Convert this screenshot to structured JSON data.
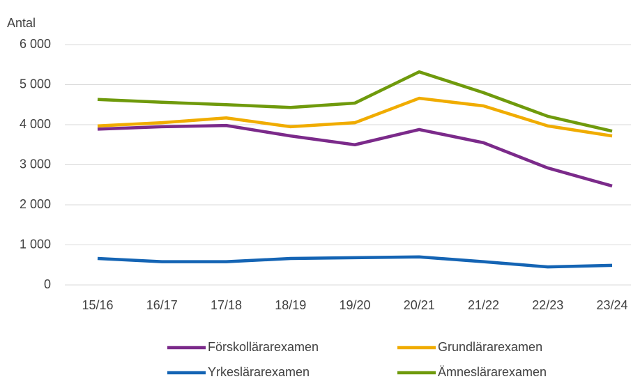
{
  "chart_data": {
    "type": "line",
    "ylabel": "Antal",
    "categories": [
      "15/16",
      "16/17",
      "17/18",
      "18/19",
      "19/20",
      "20/21",
      "21/22",
      "22/23",
      "23/24"
    ],
    "series": [
      {
        "name": "Förskollärarexamen",
        "color": "#7b2a8a",
        "values": [
          3890,
          3950,
          3980,
          3720,
          3500,
          3880,
          3550,
          2920,
          2470
        ]
      },
      {
        "name": "Grundlärarexamen",
        "color": "#f0ac00",
        "values": [
          3970,
          4050,
          4170,
          3950,
          4050,
          4660,
          4470,
          3970,
          3720
        ]
      },
      {
        "name": "Yrkeslärarexamen",
        "color": "#1464b4",
        "values": [
          660,
          580,
          580,
          660,
          680,
          700,
          580,
          450,
          490
        ]
      },
      {
        "name": "Ämneslärarexamen",
        "color": "#6f9a0c",
        "values": [
          4630,
          4560,
          4500,
          4430,
          4540,
          5320,
          4800,
          4210,
          3840
        ]
      }
    ],
    "ylim": [
      0,
      6000
    ],
    "yticks": [
      0,
      {
        "value": 1000,
        "label": "1 000"
      },
      {
        "value": 2000,
        "label": "2 000"
      },
      {
        "value": 3000,
        "label": "3 000"
      },
      {
        "value": 4000,
        "label": "4 000"
      },
      {
        "value": 5000,
        "label": "5 000"
      },
      {
        "value": 6000,
        "label": "6 000"
      }
    ],
    "grid": true,
    "legend": "bottom"
  }
}
